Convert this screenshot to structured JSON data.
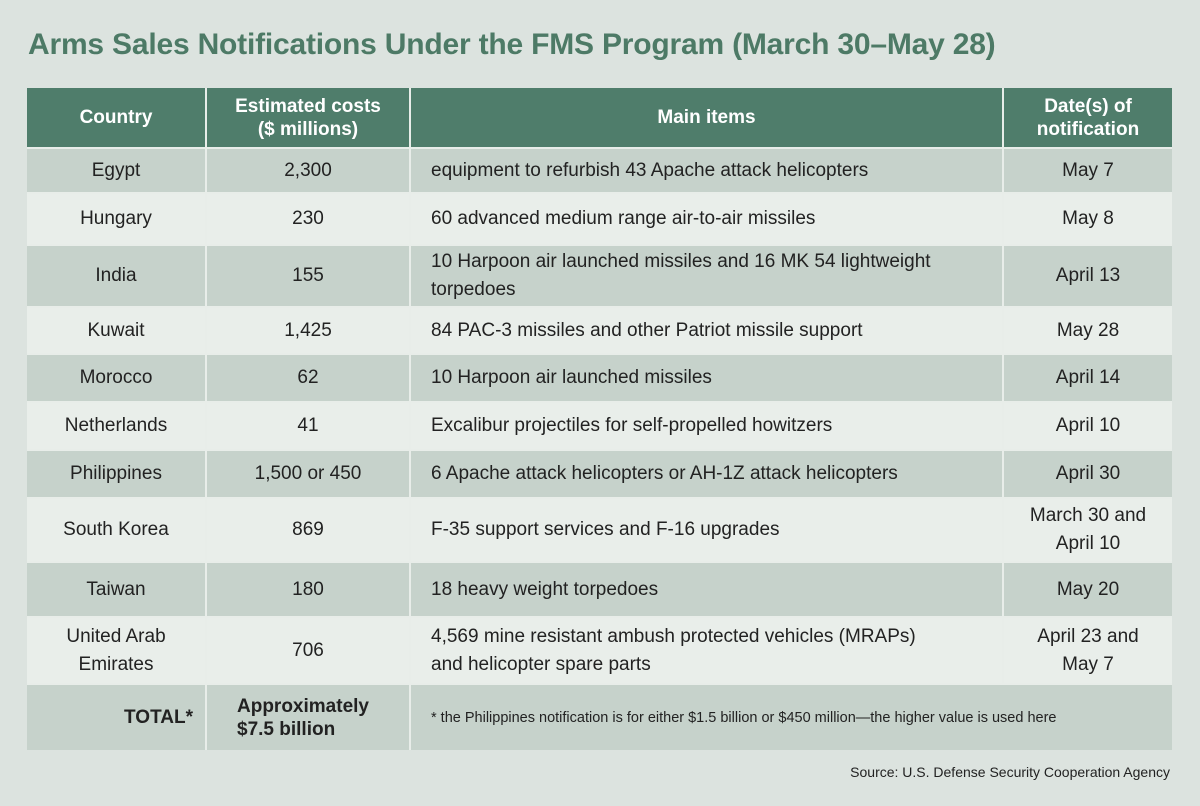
{
  "title": "Arms Sales Notifications Under the FMS Program (March 30–May 28)",
  "table": {
    "headers": {
      "country": "Country",
      "costs_line1": "Estimated costs",
      "costs_line2": "($ millions)",
      "items": "Main items",
      "date_line1": "Date(s) of",
      "date_line2": "notification"
    },
    "rows": [
      {
        "country": [
          "Egypt"
        ],
        "cost": "2,300",
        "items": [
          "equipment to refurbish 43 Apache attack helicopters"
        ],
        "date": [
          "May 7"
        ]
      },
      {
        "country": [
          "Hungary"
        ],
        "cost": "230",
        "items": [
          "60 advanced medium range air-to-air missiles"
        ],
        "date": [
          "May 8"
        ]
      },
      {
        "country": [
          "India"
        ],
        "cost": "155",
        "items": [
          "10 Harpoon air launched missiles and 16 MK 54 lightweight",
          "torpedoes"
        ],
        "date": [
          "April 13"
        ]
      },
      {
        "country": [
          "Kuwait"
        ],
        "cost": "1,425",
        "items": [
          "84 PAC-3 missiles and other Patriot missile support"
        ],
        "date": [
          "May 28"
        ]
      },
      {
        "country": [
          "Morocco"
        ],
        "cost": "62",
        "items": [
          "10 Harpoon air launched missiles"
        ],
        "date": [
          "April 14"
        ]
      },
      {
        "country": [
          "Netherlands"
        ],
        "cost": "41",
        "items": [
          "Excalibur projectiles for self-propelled howitzers"
        ],
        "date": [
          "April 10"
        ]
      },
      {
        "country": [
          "Philippines"
        ],
        "cost": "1,500 or 450",
        "items": [
          "6 Apache attack helicopters or AH-1Z attack helicopters"
        ],
        "date": [
          "April 30"
        ]
      },
      {
        "country": [
          "South Korea"
        ],
        "cost": "869",
        "items": [
          "F-35 support services and F-16 upgrades"
        ],
        "date": [
          "March 30 and",
          "April 10"
        ]
      },
      {
        "country": [
          "Taiwan"
        ],
        "cost": "180",
        "items": [
          "18 heavy weight torpedoes"
        ],
        "date": [
          "May 20"
        ]
      },
      {
        "country": [
          "United Arab",
          "Emirates"
        ],
        "cost": "706",
        "items": [
          "4,569 mine resistant ambush protected vehicles (MRAPs)",
          "and helicopter spare parts"
        ],
        "date": [
          "April 23 and",
          "May 7"
        ]
      }
    ],
    "total": {
      "label": "TOTAL*",
      "value_line1": "Approximately",
      "value_line2": "$7.5 billion",
      "footnote": "* the Philippines notification is for either $1.5 billion or $450 million—the higher value is used here"
    }
  },
  "source": "Source: U.S. Defense Security Cooperation Agency",
  "colors": {
    "title": "#4d7a66",
    "header_bg": "#4f7d6b",
    "row_dark": "#c6d2cb",
    "row_light": "#e9eeea",
    "page_bg": "#dce3df"
  }
}
